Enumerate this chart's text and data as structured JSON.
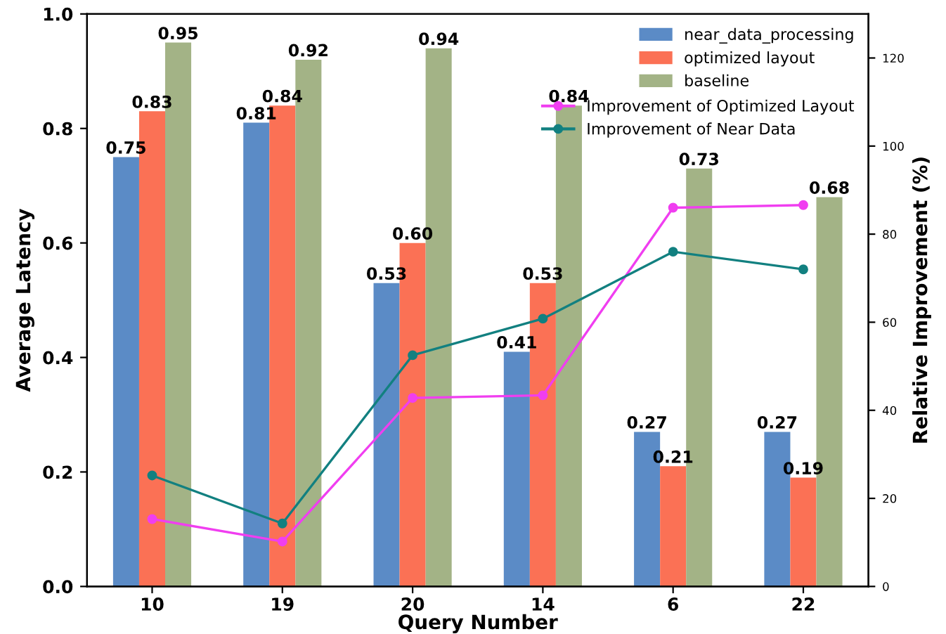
{
  "chart_data": {
    "type": "bar",
    "xlabel": "Query Number",
    "ylabel": "Average Latency",
    "y2label": "Relative Improvement (%)",
    "categories": [
      "10",
      "19",
      "20",
      "14",
      "6",
      "22"
    ],
    "series": [
      {
        "name": "near_data_processing",
        "color": "#5b8bc6",
        "values": [
          0.75,
          0.81,
          0.53,
          0.41,
          0.27,
          0.27
        ],
        "value_labels": [
          "0.75",
          "0.81",
          "0.53",
          "0.41",
          "0.27",
          "0.27"
        ]
      },
      {
        "name": "optimized layout",
        "color": "#fb7155",
        "values": [
          0.83,
          0.84,
          0.6,
          0.53,
          0.21,
          0.19
        ],
        "value_labels": [
          "0.83",
          "0.84",
          "0.60",
          "0.53",
          "0.21",
          "0.19"
        ]
      },
      {
        "name": "baseline",
        "color": "#a3b386",
        "values": [
          0.95,
          0.92,
          0.94,
          0.84,
          0.73,
          0.68
        ],
        "value_labels": [
          "0.95",
          "0.92",
          "0.94",
          "0.84",
          "0.73",
          "0.68"
        ]
      },
      {
        "name": "Improvement of Optimized Layout",
        "type": "line",
        "axis": "y2",
        "color": "#f03ef0",
        "marker": "circle",
        "values": [
          15.3,
          10.2,
          42.8,
          43.4,
          86,
          86.6
        ]
      },
      {
        "name": "Improvement of Near Data",
        "type": "line",
        "axis": "y2",
        "color": "#128080",
        "marker": "circle",
        "values": [
          25.2,
          14.3,
          52.5,
          60.8,
          76,
          72
        ]
      }
    ],
    "ylim": [
      0,
      1.0
    ],
    "yticks": [
      {
        "value": 0,
        "label": "0.0"
      },
      0.2,
      0.4,
      0.6,
      0.8,
      {
        "value": 1,
        "label": "1.0"
      }
    ],
    "y2lim": [
      0,
      130
    ],
    "y2ticks": [
      0,
      20,
      40,
      60,
      80,
      100,
      120
    ],
    "legend": "top right",
    "grid": false
  }
}
